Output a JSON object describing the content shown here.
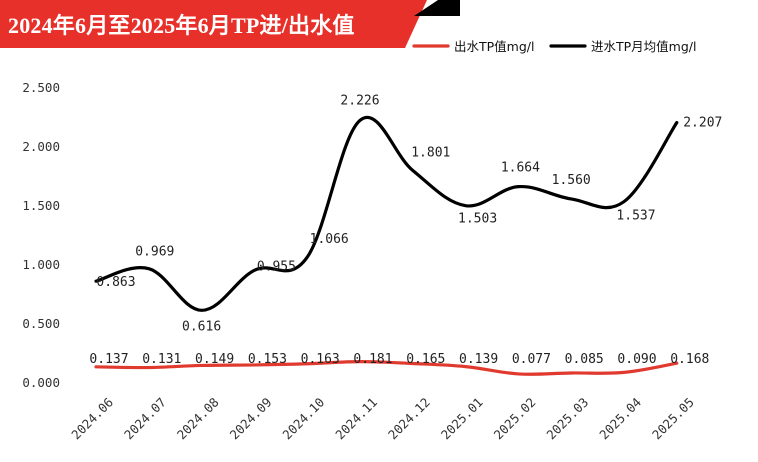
{
  "title": "2024年6月至2025年6月TP进/出水值",
  "colors": {
    "banner": "#e8302a",
    "outflow": "#e03a2f",
    "inflow": "#000000"
  },
  "chart_data": {
    "type": "line",
    "categories": [
      "2024.06",
      "2024.07",
      "2024.08",
      "2024.09",
      "2024.10",
      "2024.11",
      "2024.12",
      "2025.01",
      "2025.02",
      "2025.03",
      "2025.04",
      "2025.05"
    ],
    "series": [
      {
        "name": "出水TP值mg/l",
        "values": [
          0.137,
          0.131,
          0.149,
          0.153,
          0.163,
          0.181,
          0.165,
          0.139,
          0.077,
          0.085,
          0.09,
          0.168
        ]
      },
      {
        "name": "进水TP月均值mg/l",
        "values": [
          0.863,
          0.969,
          0.616,
          0.955,
          1.066,
          2.226,
          1.801,
          1.503,
          1.664,
          1.56,
          1.537,
          2.207
        ]
      }
    ],
    "data_labels": [
      [
        "0.137",
        "0.131",
        "0.149",
        "0.153",
        "0.163",
        "0.181",
        "0.165",
        "0.139",
        "0.077",
        "0.085",
        "0.090",
        "0.168"
      ],
      [
        "0.863",
        "0.969",
        "0.616",
        "0.955",
        "1.066",
        "2.226",
        "1.801",
        "1.503",
        "1.664",
        "1.560",
        "1.537",
        "2.207"
      ]
    ],
    "y_ticks": [
      "0.000",
      "0.500",
      "1.000",
      "1.500",
      "2.000",
      "2.500"
    ],
    "ylim": [
      0,
      2.5
    ],
    "grid": false,
    "legend_position": "top-right"
  }
}
